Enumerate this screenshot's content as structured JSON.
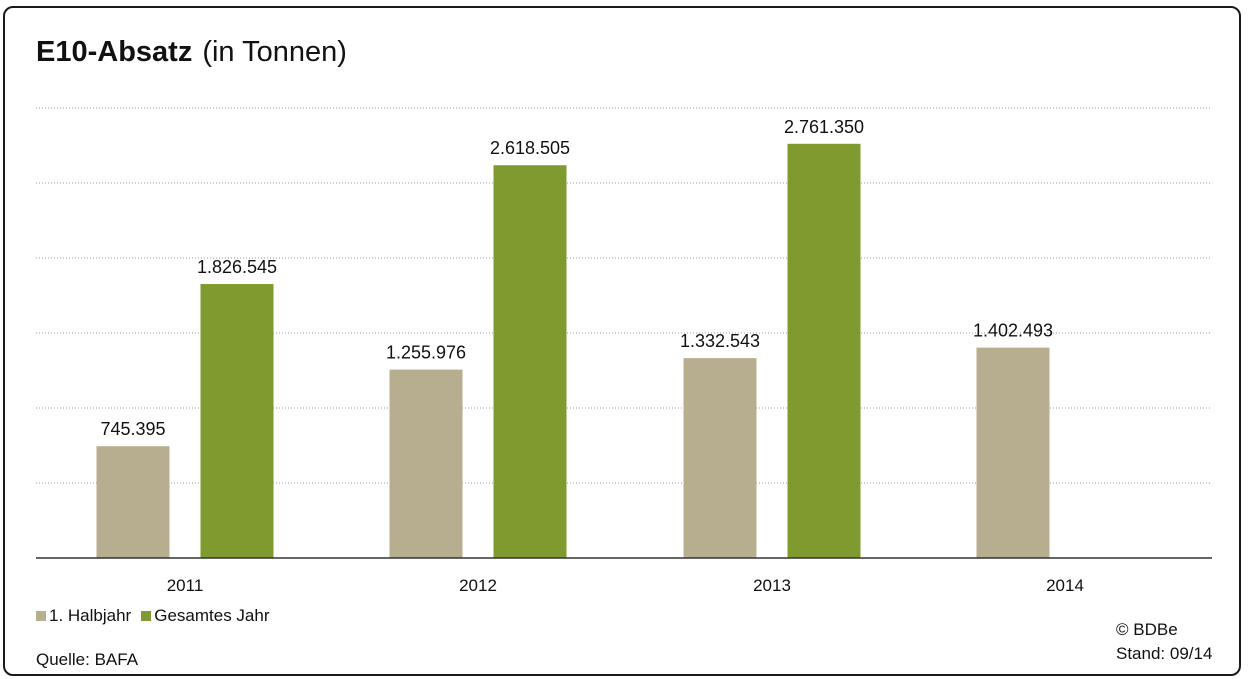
{
  "title": {
    "bold": "E10-Absatz",
    "rest": "(in Tonnen)"
  },
  "legend": {
    "items": [
      {
        "label": "1. Halbjahr",
        "color": "#b7ae8f"
      },
      {
        "label": "Gesamtes Jahr",
        "color": "#7f9a2e"
      }
    ]
  },
  "source": "Quelle: BAFA",
  "copyright": "© BDBe",
  "stand": "Stand: 09/14",
  "chart_data": {
    "type": "bar",
    "categories": [
      "2011",
      "2012",
      "2013",
      "2014"
    ],
    "series": [
      {
        "name": "1. Halbjahr",
        "values": [
          745395,
          1255976,
          1332543,
          1402493
        ],
        "labels": [
          "745.395",
          "1.255.976",
          "1.332.543",
          "1.402.493"
        ],
        "color": "#b7ae8f"
      },
      {
        "name": "Gesamtes Jahr",
        "values": [
          1826545,
          2618505,
          2761350,
          null
        ],
        "labels": [
          "1.826.545",
          "2.618.505",
          "2.761.350",
          null
        ],
        "color": "#7f9a2e"
      }
    ],
    "title": "E10-Absatz (in Tonnen)",
    "xlabel": "",
    "ylabel": "",
    "ylim": [
      0,
      3000000
    ],
    "grid": true,
    "legend_position": "bottom-left"
  }
}
